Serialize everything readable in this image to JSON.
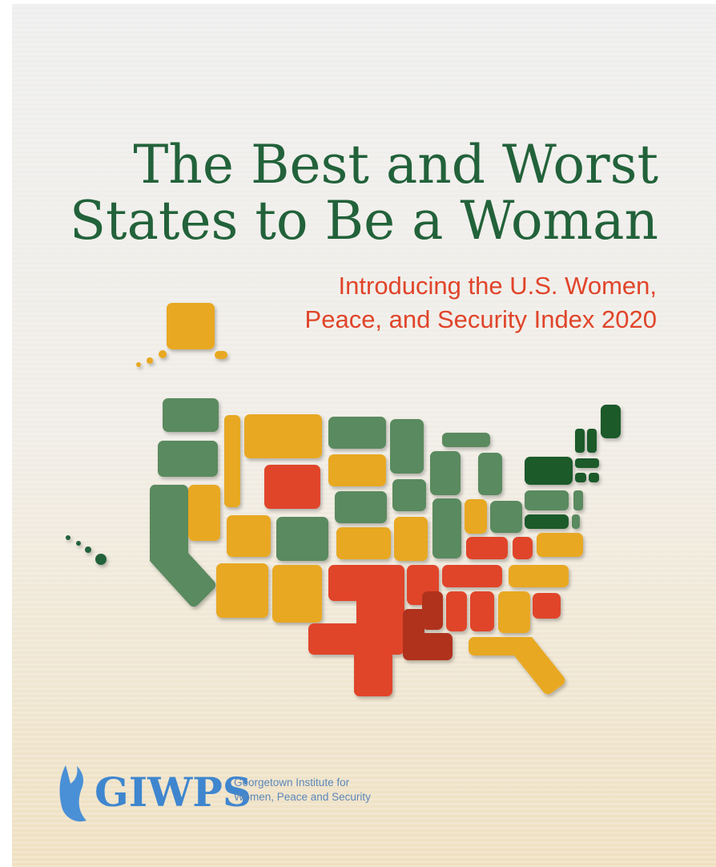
{
  "title": {
    "lines": [
      "The Best and Worst",
      "States to Be a Woman"
    ]
  },
  "subtitle": {
    "lines": [
      "Introducing the U.S. Women,",
      "Peace, and Security Index 2020"
    ]
  },
  "logo": {
    "acronym": "GIWPS",
    "name_lines": [
      "Georgetown Institute for",
      "Women, Peace and Security"
    ]
  }
}
